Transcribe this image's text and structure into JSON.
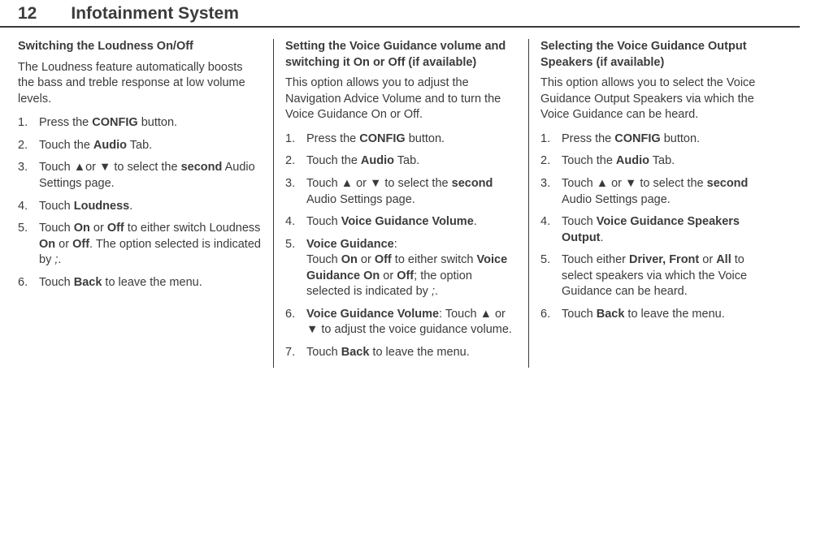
{
  "header": {
    "page_number": "12",
    "title": "Infotainment System"
  },
  "col1": {
    "heading": "Switching the Loudness On/Off",
    "intro": "The Loudness feature automatically boosts the bass and treble response at low volume levels.",
    "steps": [
      {
        "pre": "Press the ",
        "b1": "CONFIG",
        "post": " button."
      },
      {
        "pre": "Touch the ",
        "b1": "Audio",
        "post": " Tab."
      },
      {
        "pre": "Touch ▲or ▼ to select the ",
        "b1": "second",
        "post": " Audio Settings page."
      },
      {
        "pre": "Touch ",
        "b1": "Loudness",
        "post": "."
      },
      {
        "html": "Touch <b>On</b> or <b>Off</b> to either switch Loudness <b>On</b> or <b>Off</b>. The option selected is indicated by <i>;</i>."
      },
      {
        "pre": "Touch ",
        "b1": "Back",
        "post": " to leave the menu."
      }
    ]
  },
  "col2": {
    "heading": "Setting the Voice Guidance volume and switching it On or Off (if available)",
    "intro": "This option allows you to adjust the Navigation Advice Volume and to turn the Voice Guidance On or Off.",
    "steps": [
      {
        "pre": "Press the ",
        "b1": "CONFIG",
        "post": " button."
      },
      {
        "pre": "Touch the ",
        "b1": "Audio",
        "post": " Tab."
      },
      {
        "pre": "Touch ▲ or ▼ to select the ",
        "b1": "second",
        "post": " Audio Settings page."
      },
      {
        "pre": "Touch ",
        "b1": "Voice Guidance Volume",
        "post": "."
      },
      {
        "html": "<b>Voice Guidance</b>:<br>Touch <b>On</b> or <b>Off</b> to either switch <b>Voice Guidance On</b> or <b>Off</b>; the option selected is indicated by <i>;</i>."
      },
      {
        "html": "<b>Voice Guidance Volume</b>: Touch ▲ or ▼ to adjust the voice guidance volume."
      },
      {
        "pre": "Touch ",
        "b1": "Back",
        "post": " to leave the menu."
      }
    ]
  },
  "col3": {
    "heading": "Selecting the Voice Guidance Output Speakers (if available)",
    "intro": "This option allows you to select the Voice Guidance Output Speakers via which the Voice Guidance can be heard.",
    "steps": [
      {
        "pre": "Press the ",
        "b1": "CONFIG",
        "post": " button."
      },
      {
        "pre": "Touch the ",
        "b1": "Audio",
        "post": " Tab."
      },
      {
        "pre": "Touch ▲ or ▼ to select the ",
        "b1": "second",
        "post": " Audio Settings page."
      },
      {
        "pre": "Touch ",
        "b1": "Voice Guidance Speakers Output",
        "post": "."
      },
      {
        "html": "Touch either <b>Driver, Front</b> or <b>All</b> to select speakers via which the Voice Guidance can be heard."
      },
      {
        "pre": "Touch ",
        "b1": "Back",
        "post": " to leave the menu."
      }
    ]
  }
}
